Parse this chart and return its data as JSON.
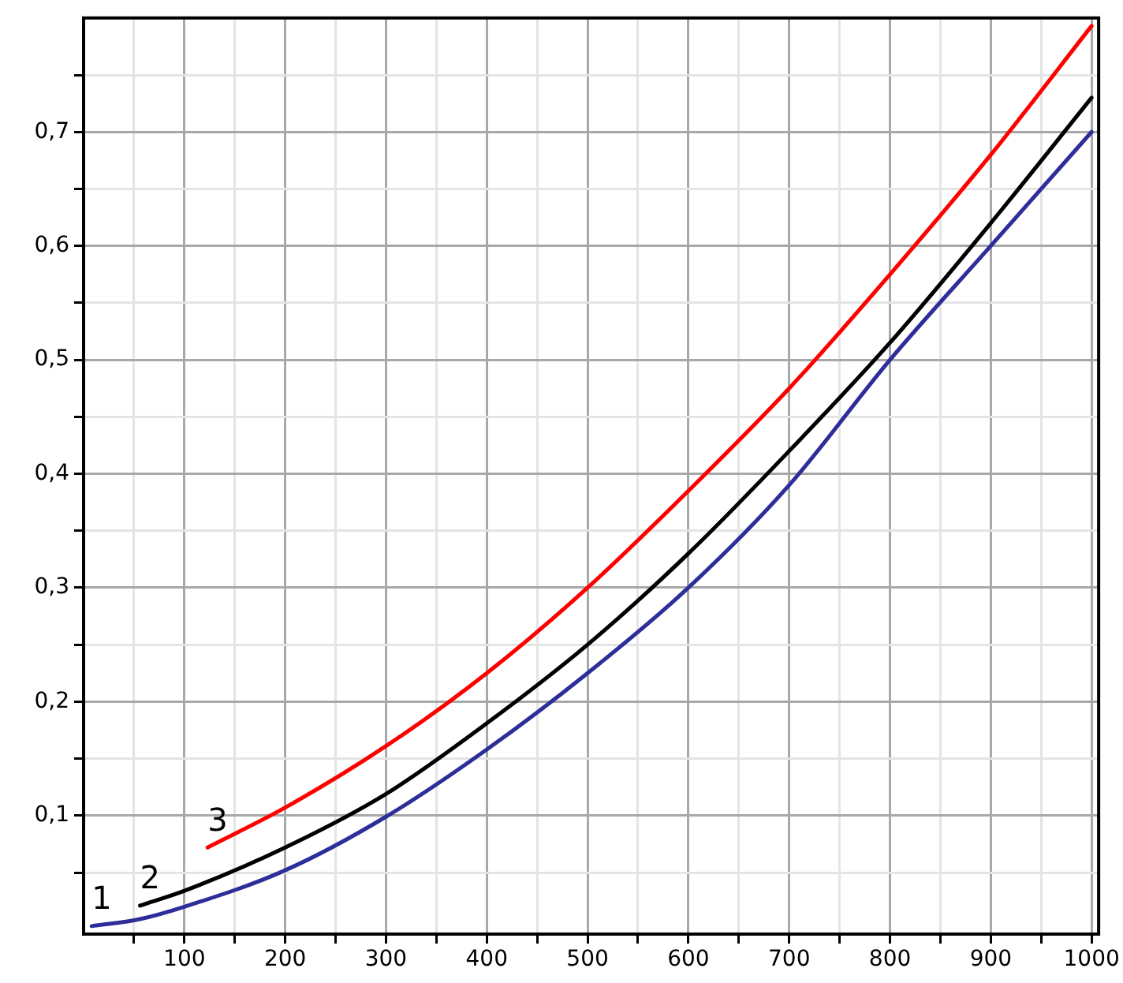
{
  "chart_data": {
    "type": "line",
    "xlim": [
      0,
      1007
    ],
    "ylim": [
      -0.004,
      0.8
    ],
    "xticks": [
      {
        "value": 50,
        "label": null
      },
      100,
      {
        "value": 150,
        "label": null
      },
      200,
      {
        "value": 250,
        "label": null
      },
      300,
      {
        "value": 350,
        "label": null
      },
      400,
      {
        "value": 450,
        "label": null
      },
      500,
      {
        "value": 550,
        "label": null
      },
      600,
      {
        "value": 650,
        "label": null
      },
      700,
      {
        "value": 750,
        "label": null
      },
      800,
      {
        "value": 850,
        "label": null
      },
      900,
      {
        "value": 950,
        "label": null
      },
      1000
    ],
    "yticks": [
      {
        "value": 0.05,
        "label": null
      },
      {
        "value": 0.1,
        "label": "0,1"
      },
      {
        "value": 0.15,
        "label": null
      },
      {
        "value": 0.2,
        "label": "0,2"
      },
      {
        "value": 0.25,
        "label": null
      },
      {
        "value": 0.3,
        "label": "0,3"
      },
      {
        "value": 0.35,
        "label": null
      },
      {
        "value": 0.4,
        "label": "0,4"
      },
      {
        "value": 0.45,
        "label": null
      },
      {
        "value": 0.5,
        "label": "0,5"
      },
      {
        "value": 0.55,
        "label": null
      },
      {
        "value": 0.6,
        "label": "0,6"
      },
      {
        "value": 0.65,
        "label": null
      },
      {
        "value": 0.7,
        "label": "0,7"
      },
      {
        "value": 0.75,
        "label": null
      }
    ],
    "grid": true,
    "legend": false,
    "marker": "none",
    "line_style": "solid",
    "series": [
      {
        "name": "1",
        "color": "#2e2e9a",
        "x": [
          8,
          55,
          100,
          200,
          300,
          400,
          500,
          600,
          700,
          800,
          900,
          1000
        ],
        "values": [
          0.003,
          0.009,
          0.02,
          0.052,
          0.099,
          0.158,
          0.225,
          0.3,
          0.39,
          0.5,
          0.6,
          0.7
        ]
      },
      {
        "name": "2",
        "color": "#000000",
        "x": [
          56,
          100,
          200,
          300,
          400,
          500,
          600,
          700,
          800,
          900,
          1000
        ],
        "values": [
          0.021,
          0.034,
          0.072,
          0.119,
          0.181,
          0.25,
          0.33,
          0.42,
          0.515,
          0.62,
          0.73
        ]
      },
      {
        "name": "3",
        "color": "#ff0000",
        "x": [
          123,
          200,
          300,
          400,
          500,
          600,
          700,
          800,
          900,
          1000
        ],
        "values": [
          0.072,
          0.107,
          0.161,
          0.225,
          0.3,
          0.385,
          0.475,
          0.575,
          0.68,
          0.793
        ]
      }
    ]
  }
}
